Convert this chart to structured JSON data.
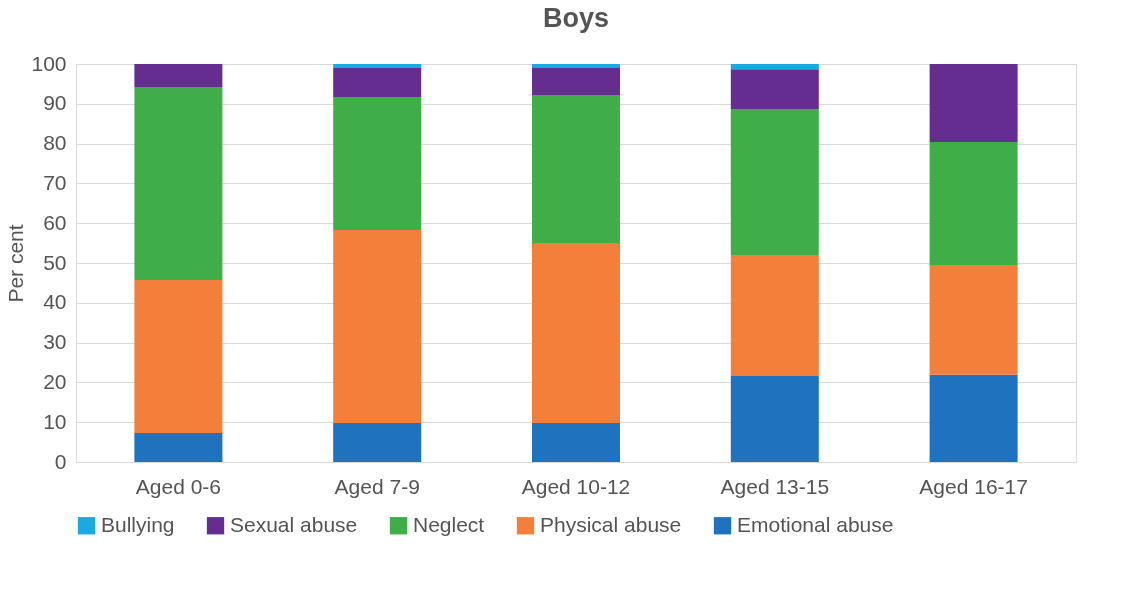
{
  "chart_data": {
    "type": "bar",
    "title": "Boys",
    "ylabel": "Per cent",
    "stacked": true,
    "categories": [
      "Aged 0-6",
      "Aged 7-9",
      "Aged 10-12",
      "Aged 13-15",
      "Aged 16-17"
    ],
    "series": [
      {
        "name": "Emotional abuse",
        "color": "#1f73be",
        "values": [
          7.3,
          9.8,
          9.8,
          21.6,
          21.9
        ]
      },
      {
        "name": "Physical abuse",
        "color": "#f37f3b",
        "values": [
          38.4,
          48.5,
          45.2,
          30.2,
          27.6
        ]
      },
      {
        "name": "Neglect",
        "color": "#3fae49",
        "values": [
          48.5,
          33.4,
          37.2,
          36.9,
          30.9
        ]
      },
      {
        "name": "Sexual abuse",
        "color": "#662d91",
        "values": [
          5.8,
          7.3,
          6.8,
          10.0,
          19.6
        ]
      },
      {
        "name": "Bullying",
        "color": "#1ba9e1",
        "values": [
          0,
          1.0,
          1.0,
          1.3,
          0
        ]
      }
    ],
    "ylim": [
      0,
      100
    ],
    "yticks": [
      0,
      10,
      20,
      30,
      40,
      50,
      60,
      70,
      80,
      90,
      100
    ],
    "grid": "y",
    "legend": "bottom"
  }
}
